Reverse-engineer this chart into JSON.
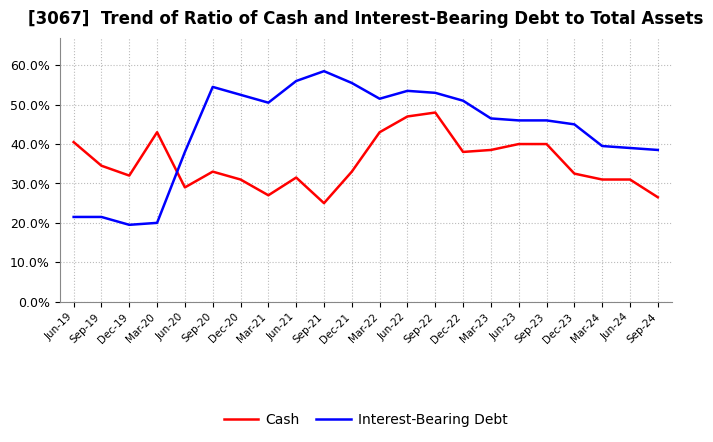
{
  "title": "[3067]  Trend of Ratio of Cash and Interest-Bearing Debt to Total Assets",
  "x_labels": [
    "Jun-19",
    "Sep-19",
    "Dec-19",
    "Mar-20",
    "Jun-20",
    "Sep-20",
    "Dec-20",
    "Mar-21",
    "Jun-21",
    "Sep-21",
    "Dec-21",
    "Mar-22",
    "Jun-22",
    "Sep-22",
    "Dec-22",
    "Mar-23",
    "Jun-23",
    "Sep-23",
    "Dec-23",
    "Mar-24",
    "Jun-24",
    "Sep-24"
  ],
  "cash": [
    40.5,
    34.5,
    32.0,
    43.0,
    29.0,
    33.0,
    31.0,
    27.0,
    31.5,
    25.0,
    33.0,
    43.0,
    47.0,
    48.0,
    38.0,
    38.5,
    40.0,
    40.0,
    32.5,
    31.0,
    31.0,
    26.5
  ],
  "interest_bearing_debt": [
    21.5,
    21.5,
    19.5,
    20.0,
    38.0,
    54.5,
    52.5,
    50.5,
    56.0,
    58.5,
    55.5,
    51.5,
    53.5,
    53.0,
    51.0,
    46.5,
    46.0,
    46.0,
    45.0,
    39.5,
    39.0,
    38.5
  ],
  "cash_color": "#ff0000",
  "debt_color": "#0000ff",
  "ylim": [
    0,
    67
  ],
  "yticks": [
    0,
    10,
    20,
    30,
    40,
    50,
    60
  ],
  "ytick_labels": [
    "0.0%",
    "10.0%",
    "20.0%",
    "30.0%",
    "40.0%",
    "50.0%",
    "60.0%"
  ],
  "legend_cash": "Cash",
  "legend_debt": "Interest-Bearing Debt",
  "background_color": "#ffffff",
  "grid_color": "#aaaaaa",
  "title_fontsize": 12,
  "line_width": 1.8
}
